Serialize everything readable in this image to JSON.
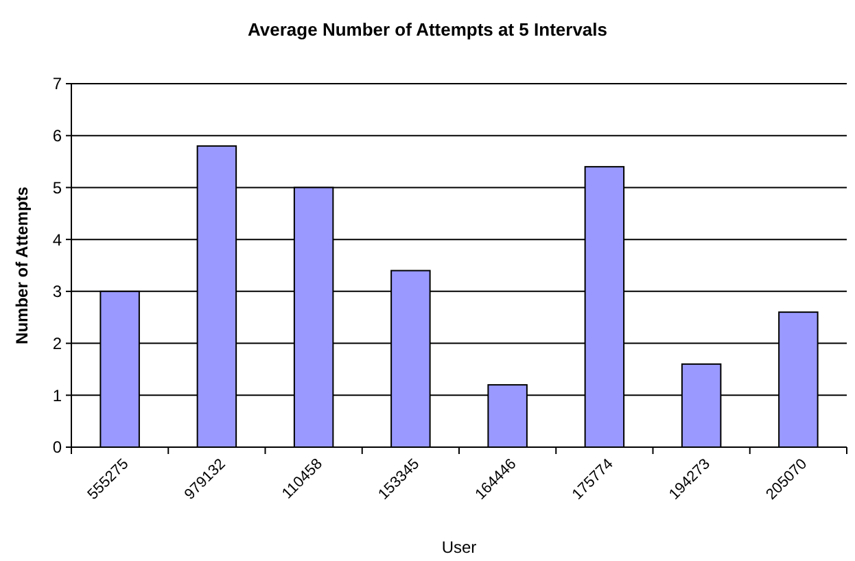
{
  "chart_data": {
    "type": "bar",
    "title": "Average Number of Attempts at 5 Intervals",
    "xlabel": "User",
    "ylabel": "Number of Attempts",
    "categories": [
      "555275",
      "979132",
      "110458",
      "153345",
      "164446",
      "175774",
      "194273",
      "205070"
    ],
    "values": [
      3,
      5.8,
      5,
      3.4,
      1.2,
      5.4,
      1.6,
      2.6
    ],
    "color": "#9999ff",
    "ylim": [
      0,
      7
    ],
    "yticks": [
      0,
      1,
      2,
      3,
      4,
      5,
      6,
      7
    ],
    "grid": "y"
  }
}
